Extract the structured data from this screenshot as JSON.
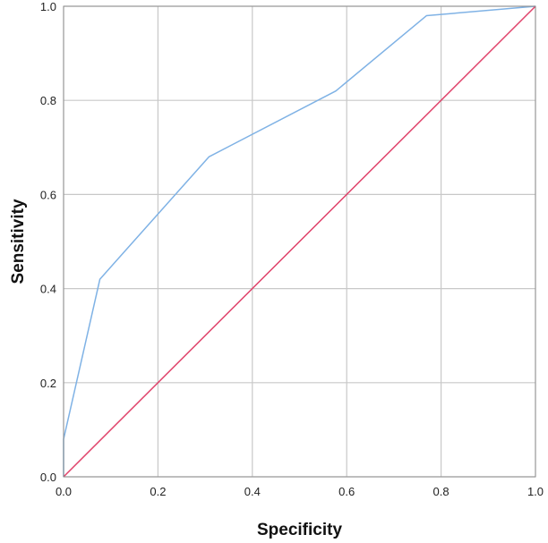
{
  "chart_data": {
    "type": "line",
    "title": "",
    "xlabel": "Specificity",
    "ylabel": "Sensitivity",
    "xlim": [
      0.0,
      1.0
    ],
    "ylim": [
      0.0,
      1.0
    ],
    "x_ticks": [
      "0.0",
      "0.2",
      "0.4",
      "0.6",
      "0.8",
      "1.0"
    ],
    "y_ticks": [
      "0.0",
      "0.2",
      "0.4",
      "0.6",
      "0.8",
      "1.0"
    ],
    "grid": true,
    "legend": "none",
    "series": [
      {
        "color": "#7fb2e5",
        "x": [
          0.0,
          0.0,
          0.077,
          0.308,
          0.577,
          0.769,
          1.0
        ],
        "y": [
          0.0,
          0.08,
          0.42,
          0.68,
          0.82,
          0.98,
          1.0
        ]
      },
      {
        "color": "#e0436b",
        "x": [
          0.0,
          1.0
        ],
        "y": [
          0.0,
          1.0
        ]
      }
    ]
  }
}
